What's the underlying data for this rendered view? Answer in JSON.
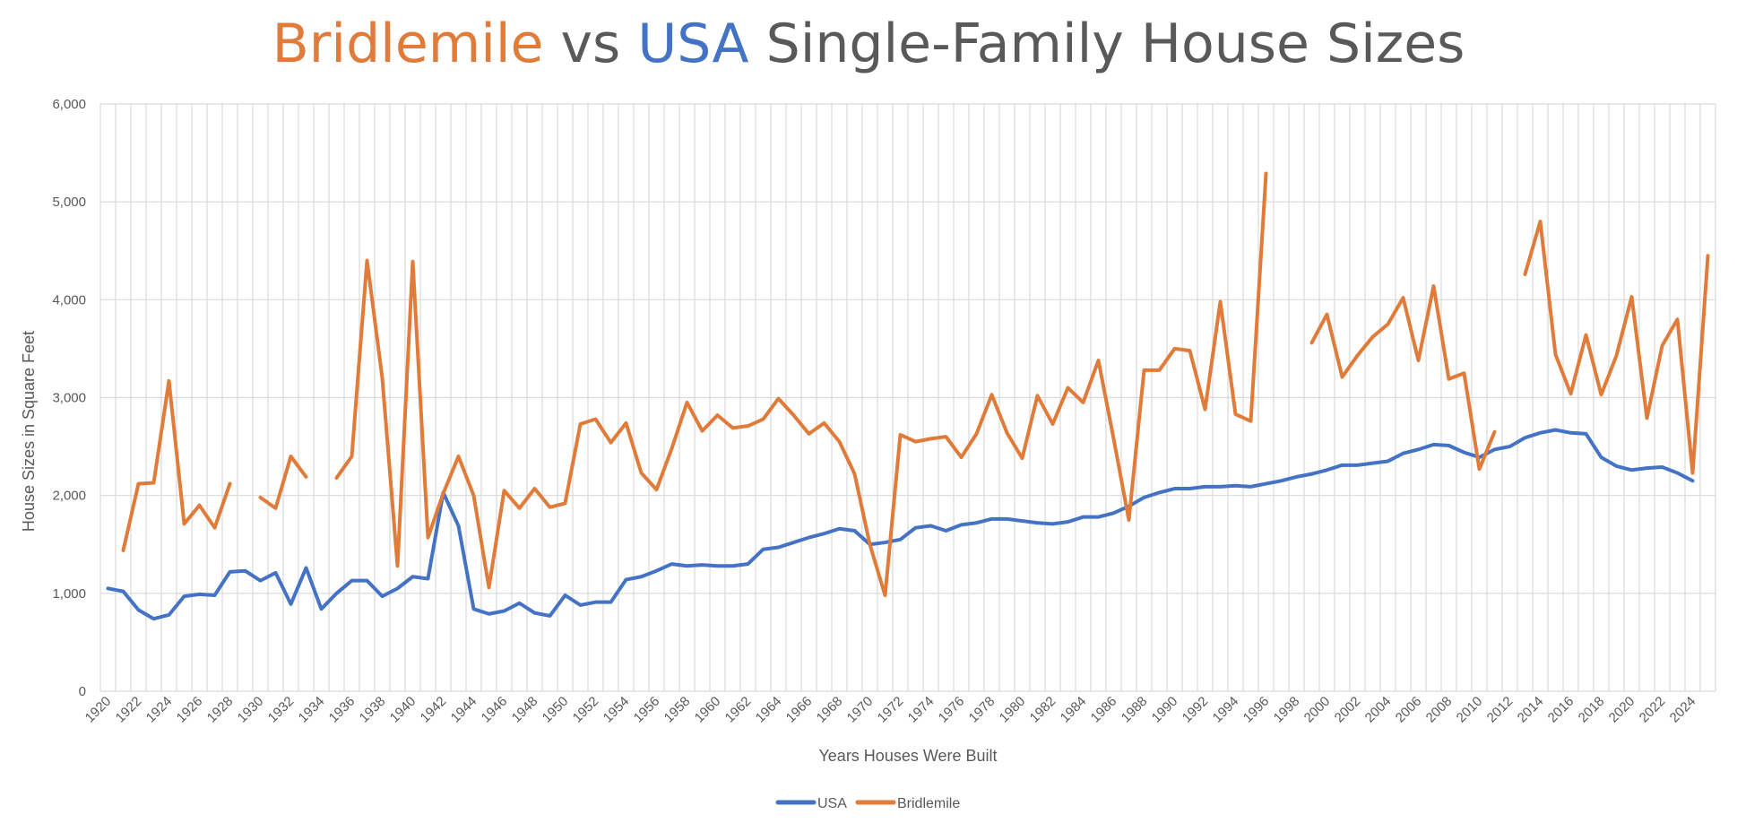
{
  "title": {
    "part1": "Bridlemile",
    "part2": " vs ",
    "part3": "USA",
    "part4": " Single-Family House Sizes"
  },
  "colors": {
    "bridlemile": "#E07B39",
    "usa": "#4472C4",
    "text": "#595959",
    "grid": "#D9D9D9"
  },
  "chart_data": {
    "type": "line",
    "xlabel": "Years Houses Were Built",
    "ylabel": "House Sizes in Square Feet",
    "ylim": [
      0,
      6000
    ],
    "yticks": [
      0,
      1000,
      2000,
      3000,
      4000,
      5000,
      6000
    ],
    "ytick_labels": [
      "0",
      "1,000",
      "2,000",
      "3,000",
      "4,000",
      "5,000",
      "6,000"
    ],
    "x_start": 1920,
    "x_end": 2025,
    "xtick_labels": [
      "1920",
      "1922",
      "1924",
      "1926",
      "1928",
      "1930",
      "1932",
      "1934",
      "1936",
      "1938",
      "1940",
      "1942",
      "1944",
      "1946",
      "1948",
      "1950",
      "1952",
      "1954",
      "1956",
      "1958",
      "1960",
      "1962",
      "1964",
      "1966",
      "1968",
      "1970",
      "1972",
      "1974",
      "1976",
      "1978",
      "1980",
      "1982",
      "1984",
      "1986",
      "1988",
      "1990",
      "1992",
      "1994",
      "1996",
      "1998",
      "2000",
      "2002",
      "2004",
      "2006",
      "2008",
      "2010",
      "2012",
      "2014",
      "2016",
      "2018",
      "2020",
      "2022",
      "2024"
    ],
    "grid": true,
    "legend_position": "bottom",
    "series": [
      {
        "name": "USA",
        "color": "#4472C4",
        "x": [
          1920,
          1921,
          1922,
          1923,
          1924,
          1925,
          1926,
          1927,
          1928,
          1929,
          1930,
          1931,
          1932,
          1933,
          1934,
          1935,
          1936,
          1937,
          1938,
          1939,
          1940,
          1941,
          1942,
          1943,
          1944,
          1945,
          1946,
          1947,
          1948,
          1949,
          1950,
          1951,
          1952,
          1953,
          1954,
          1955,
          1956,
          1957,
          1958,
          1959,
          1960,
          1961,
          1962,
          1963,
          1964,
          1965,
          1966,
          1967,
          1968,
          1969,
          1970,
          1971,
          1972,
          1973,
          1974,
          1975,
          1976,
          1977,
          1978,
          1979,
          1980,
          1981,
          1982,
          1983,
          1984,
          1985,
          1986,
          1987,
          1988,
          1989,
          1990,
          1991,
          1992,
          1993,
          1994,
          1995,
          1996,
          1997,
          1998,
          1999,
          2000,
          2001,
          2002,
          2003,
          2004,
          2005,
          2006,
          2007,
          2008,
          2009,
          2010,
          2011,
          2012,
          2013,
          2014,
          2015,
          2016,
          2017,
          2018,
          2019,
          2020,
          2021,
          2022,
          2023,
          2024
        ],
        "y": [
          1050,
          1020,
          830,
          740,
          780,
          970,
          990,
          980,
          1220,
          1230,
          1130,
          1210,
          890,
          1260,
          840,
          1000,
          1130,
          1130,
          970,
          1050,
          1170,
          1150,
          2030,
          1690,
          840,
          790,
          820,
          900,
          800,
          770,
          980,
          880,
          910,
          910,
          1140,
          1170,
          1230,
          1300,
          1280,
          1290,
          1280,
          1280,
          1300,
          1450,
          1470,
          1520,
          1570,
          1610,
          1660,
          1640,
          1500,
          1520,
          1550,
          1670,
          1690,
          1640,
          1700,
          1720,
          1760,
          1760,
          1740,
          1720,
          1710,
          1730,
          1780,
          1780,
          1820,
          1890,
          1980,
          2030,
          2070,
          2070,
          2090,
          2090,
          2100,
          2090,
          2120,
          2150,
          2190,
          2220,
          2260,
          2310,
          2310,
          2330,
          2350,
          2430,
          2470,
          2520,
          2510,
          2440,
          2390,
          2470,
          2500,
          2590,
          2640,
          2670,
          2640,
          2630,
          2390,
          2300,
          2260,
          2280,
          2290,
          2230,
          2150
        ]
      },
      {
        "name": "Bridlemile",
        "color": "#E07B39",
        "x": [
          1920,
          1921,
          1922,
          1923,
          1924,
          1925,
          1926,
          1927,
          1928,
          1929,
          1930,
          1931,
          1932,
          1933,
          1934,
          1935,
          1936,
          1937,
          1938,
          1939,
          1940,
          1941,
          1942,
          1943,
          1944,
          1945,
          1946,
          1947,
          1948,
          1949,
          1950,
          1951,
          1952,
          1953,
          1954,
          1955,
          1956,
          1957,
          1958,
          1959,
          1960,
          1961,
          1962,
          1963,
          1964,
          1965,
          1966,
          1967,
          1968,
          1969,
          1970,
          1971,
          1972,
          1973,
          1974,
          1975,
          1976,
          1977,
          1978,
          1979,
          1980,
          1981,
          1982,
          1983,
          1984,
          1985,
          1986,
          1987,
          1988,
          1989,
          1990,
          1991,
          1992,
          1993,
          1994,
          1995,
          1996,
          1997,
          1998,
          1999,
          2000,
          2001,
          2002,
          2003,
          2004,
          2005,
          2006,
          2007,
          2008,
          2009,
          2010,
          2011,
          2012,
          2013,
          2014,
          2015,
          2016,
          2017,
          2018,
          2019,
          2020,
          2021,
          2022,
          2023,
          2024,
          2025
        ],
        "y": [
          null,
          1440,
          2120,
          2130,
          3170,
          1710,
          1900,
          1670,
          2120,
          null,
          1980,
          1870,
          2400,
          2190,
          null,
          2180,
          2400,
          4400,
          3200,
          1280,
          4390,
          1570,
          2020,
          2400,
          2000,
          1060,
          2050,
          1870,
          2070,
          1880,
          1920,
          2730,
          2780,
          2540,
          2740,
          2230,
          2060,
          2480,
          2950,
          2660,
          2820,
          2690,
          2710,
          2780,
          2990,
          2820,
          2630,
          2740,
          2550,
          2220,
          1500,
          980,
          2620,
          2550,
          2580,
          2600,
          2390,
          2630,
          3030,
          2640,
          2380,
          3020,
          2730,
          3100,
          2950,
          3380,
          2580,
          1750,
          3280,
          3280,
          3500,
          3480,
          2880,
          3980,
          2830,
          2760,
          5290,
          null,
          null,
          3560,
          3850,
          3210,
          3430,
          3620,
          3750,
          4020,
          3380,
          4140,
          3190,
          3250,
          2270,
          2650,
          null,
          4260,
          4800,
          3440,
          3040,
          3640,
          3030,
          3430,
          4030,
          2790,
          3530,
          3800,
          2230,
          4450
        ]
      }
    ]
  }
}
